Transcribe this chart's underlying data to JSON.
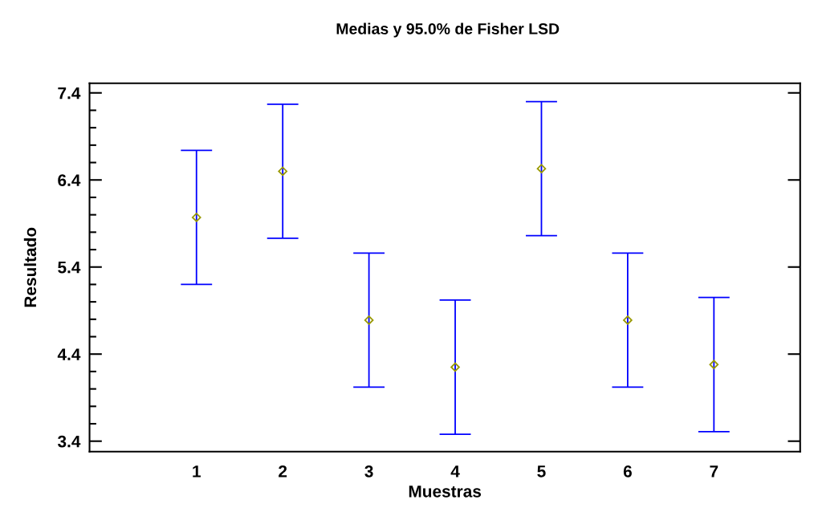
{
  "chart_data": {
    "type": "scatter",
    "title": "Medias y 95.0% de Fisher LSD",
    "xlabel": "Muestras",
    "ylabel": "Resultado",
    "categories": [
      "1",
      "2",
      "3",
      "4",
      "5",
      "6",
      "7"
    ],
    "series": [
      {
        "color": "#999900",
        "values": [
          5.97,
          6.5,
          4.79,
          4.25,
          6.53,
          4.79,
          4.28
        ],
        "errors": [
          0.77,
          0.77,
          0.77,
          0.77,
          0.77,
          0.77,
          0.77
        ]
      }
    ],
    "marker": "diamond",
    "ylim": [
      3.28,
      7.51
    ],
    "yticks": [
      3.4,
      {
        "value": 3.6,
        "label": null
      },
      {
        "value": 3.8,
        "label": null
      },
      {
        "value": 4.0,
        "label": null
      },
      {
        "value": 4.2,
        "label": null
      },
      4.4,
      {
        "value": 4.6,
        "label": null
      },
      {
        "value": 4.8,
        "label": null
      },
      {
        "value": 5.0,
        "label": null
      },
      {
        "value": 5.2,
        "label": null
      },
      5.4,
      {
        "value": 5.6,
        "label": null
      },
      {
        "value": 5.8,
        "label": null
      },
      {
        "value": 6.0,
        "label": null
      },
      {
        "value": 6.2,
        "label": null
      },
      6.4,
      {
        "value": 6.6,
        "label": null
      },
      {
        "value": 6.8,
        "label": null
      },
      {
        "value": 7.0,
        "label": null
      },
      {
        "value": 7.2,
        "label": null
      },
      7.4
    ],
    "grid": false,
    "legend": false
  }
}
